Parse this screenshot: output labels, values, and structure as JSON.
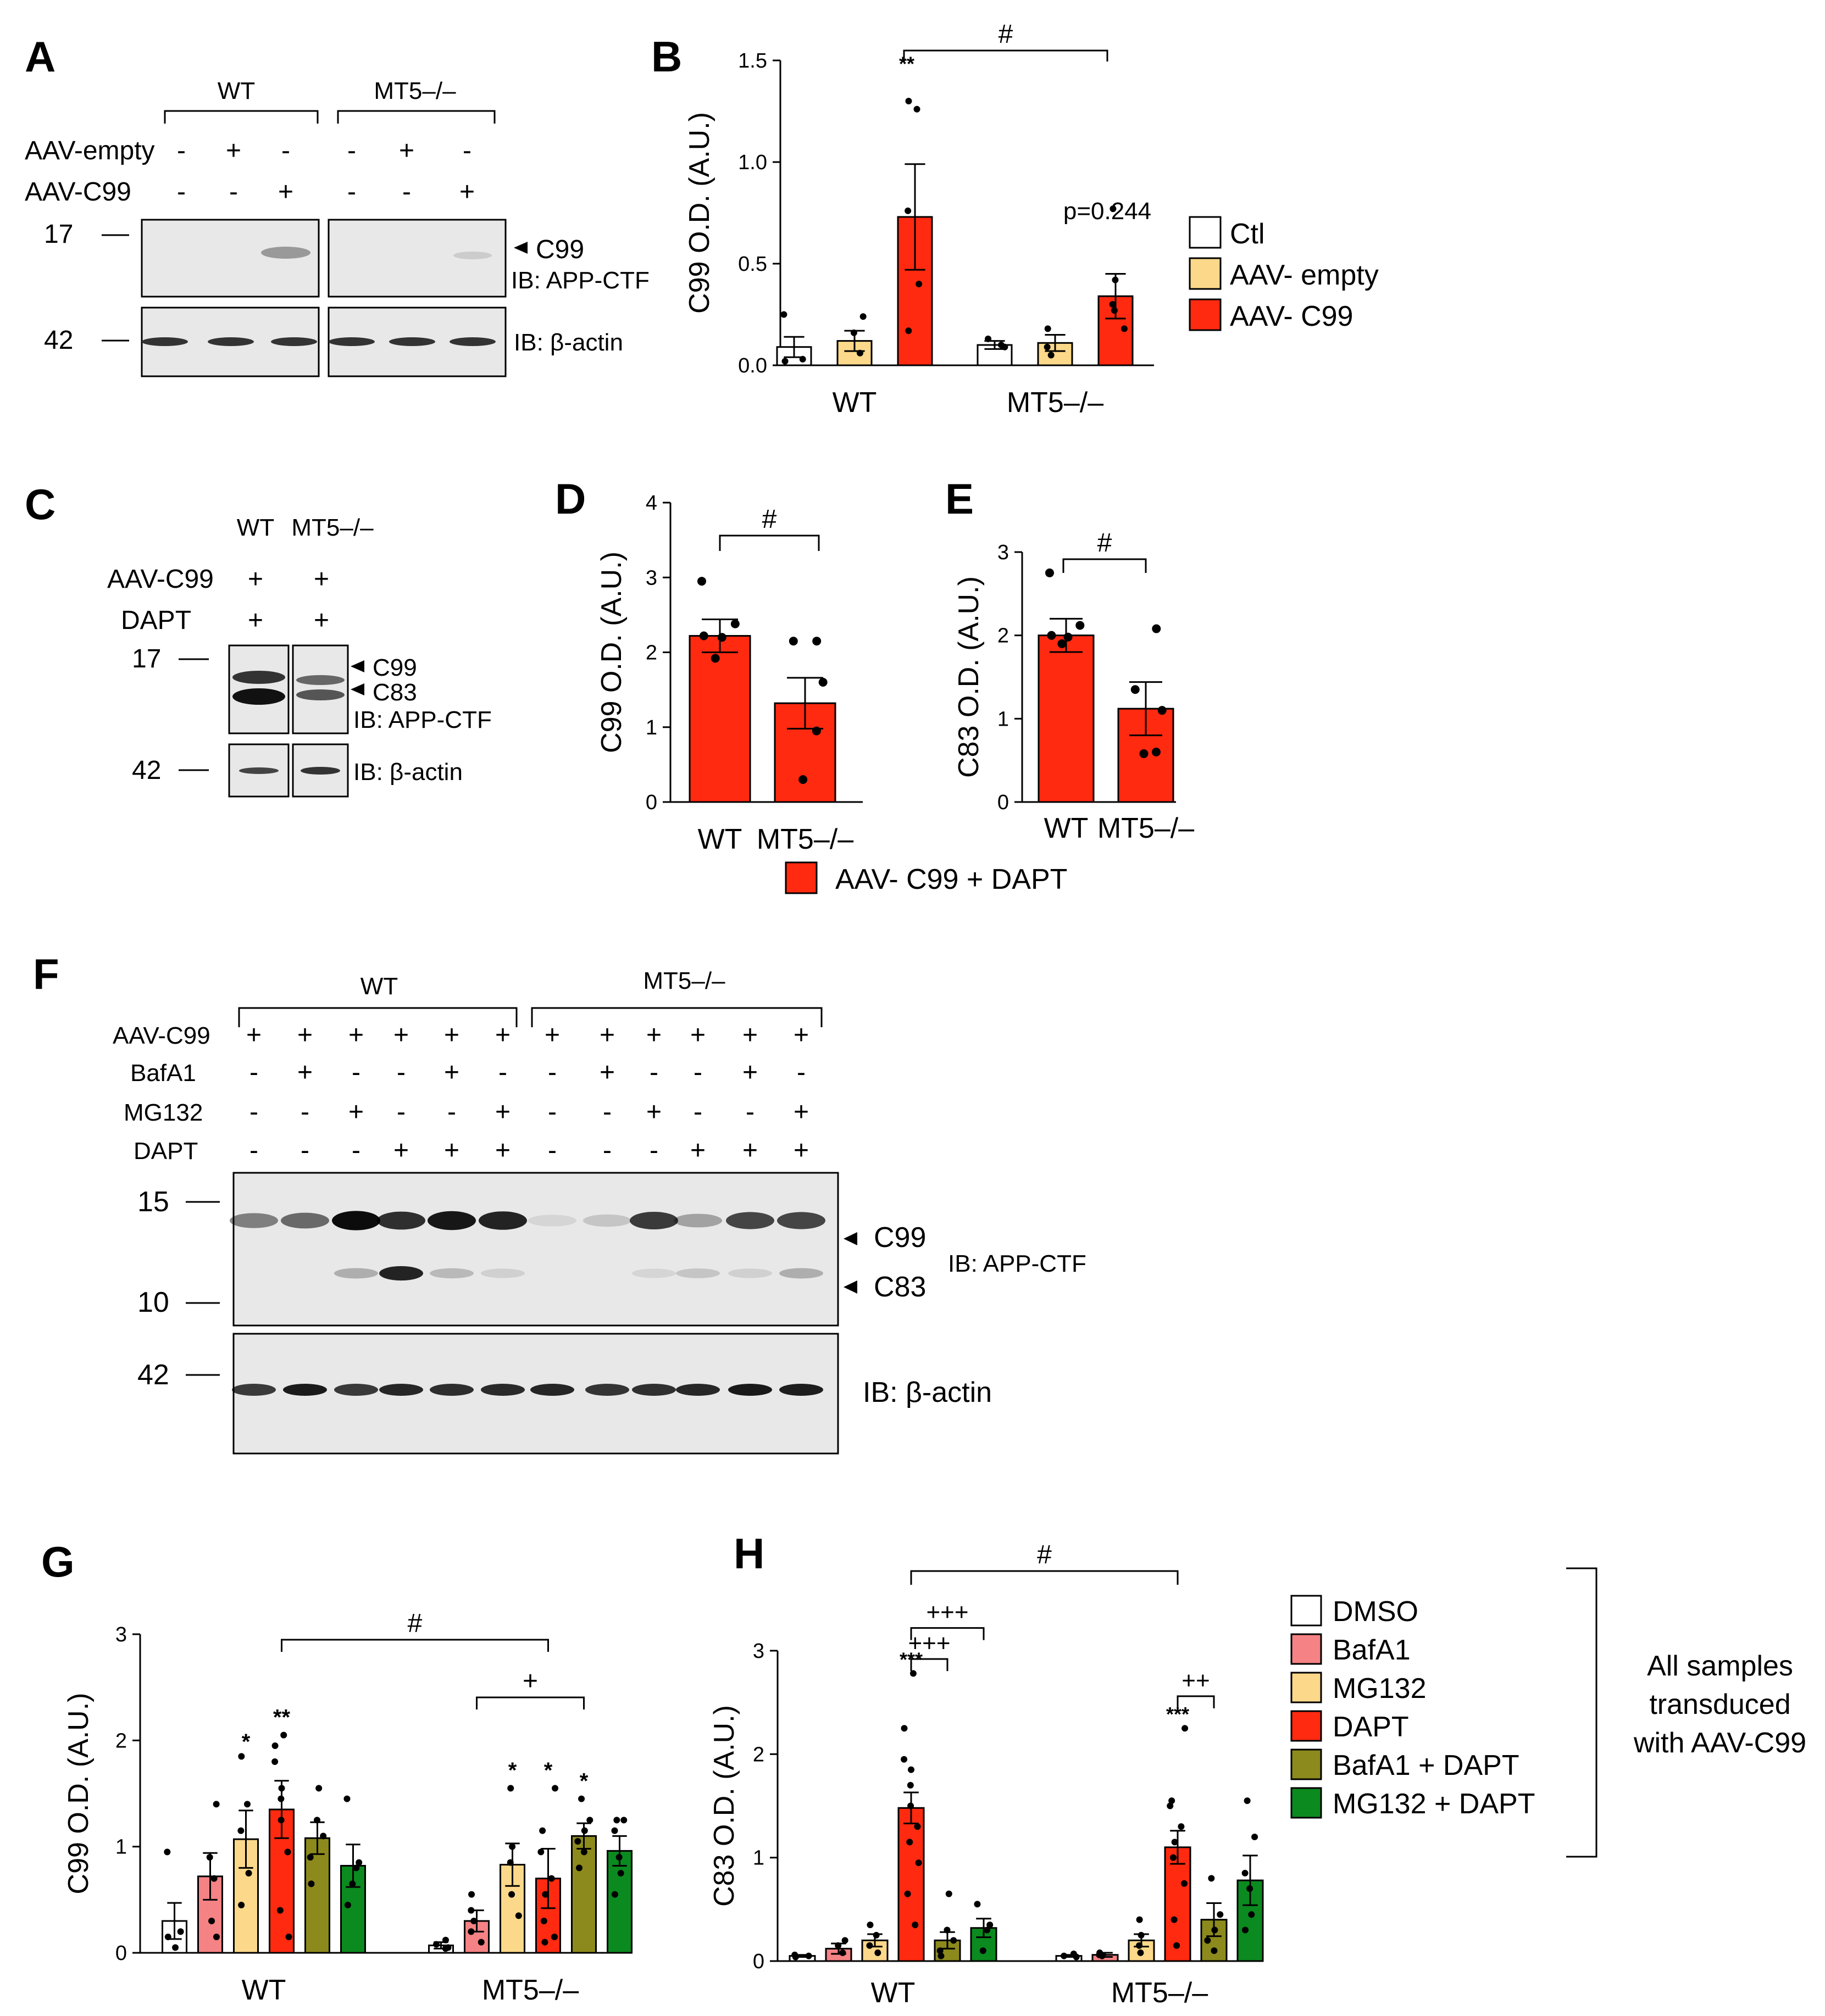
{
  "colors": {
    "ctl": "#ffffff",
    "empty": "#fcd88a",
    "c99": "#ff2a10",
    "dmso": "#ffffff",
    "bafa1": "#f58284",
    "mg132": "#fcd88a",
    "dapt": "#ff2a10",
    "bafa1_dapt": "#8c8a1c",
    "mg132_dapt": "#0b8a1f"
  },
  "panels": {
    "A": "A",
    "B": "B",
    "C": "C",
    "D": "D",
    "E": "E",
    "F": "F",
    "G": "G",
    "H": "H"
  },
  "blotA": {
    "group_wt": "WT",
    "group_ko": "MT5–/–",
    "row_labels": [
      "AAV-empty",
      "AAV-C99"
    ],
    "row_values": [
      [
        "-",
        "+",
        "-",
        "-",
        "+",
        "-"
      ],
      [
        "-",
        "-",
        "+",
        "-",
        "-",
        "+"
      ]
    ],
    "mw": [
      "17",
      "42"
    ],
    "band_c99": "C99",
    "ib_top": "IB: APP-CTF",
    "ib_bottom": "IB: β-actin"
  },
  "blotC": {
    "group_wt": "WT",
    "group_ko": "MT5–/–",
    "row_labels": [
      "AAV-C99",
      "DAPT"
    ],
    "row_values": [
      [
        "+",
        "+"
      ],
      [
        "+",
        "+"
      ]
    ],
    "mw": [
      "17",
      "42"
    ],
    "band_c99": "C99",
    "band_c83": "C83",
    "ib_top": "IB: APP-CTF",
    "ib_bottom": "IB: β-actin"
  },
  "blotF": {
    "group_wt": "WT",
    "group_ko": "MT5–/–",
    "row_labels": [
      "AAV-C99",
      "BafA1",
      "MG132",
      "DAPT"
    ],
    "row_values": [
      [
        "+",
        "+",
        "+",
        "+",
        "+",
        "+",
        "+",
        "+",
        "+",
        "+",
        "+",
        "+"
      ],
      [
        "-",
        "+",
        "-",
        "-",
        "+",
        "-",
        "-",
        "+",
        "-",
        "-",
        "+",
        "-"
      ],
      [
        "-",
        "-",
        "+",
        "-",
        "-",
        "+",
        "-",
        "-",
        "+",
        "-",
        "-",
        "+"
      ],
      [
        "-",
        "-",
        "-",
        "+",
        "+",
        "+",
        "-",
        "-",
        "-",
        "+",
        "+",
        "+"
      ]
    ],
    "mw": [
      "15",
      "10",
      "42"
    ],
    "band_c99": "C99",
    "band_c83": "C83",
    "ib_top": "IB: APP-CTF",
    "ib_bottom": "IB: β-actin"
  },
  "legendB": [
    "Ctl",
    "AAV- empty",
    "AAV- C99"
  ],
  "legendDE": "AAV- C99 + DAPT",
  "legendGH": [
    "DMSO",
    "BafA1",
    "MG132",
    "DAPT",
    "BafA1 + DAPT",
    "MG132 + DAPT"
  ],
  "noteGH": [
    "All samples",
    "transduced",
    "with AAV-C99"
  ],
  "chart_data": [
    {
      "id": "B",
      "type": "bar",
      "ylabel": "C99 O.D. (A.U.)",
      "ylim": [
        0,
        1.5
      ],
      "yticks": [
        "0.0",
        "0.5",
        "1.0",
        "1.5"
      ],
      "categories": [
        "WT",
        "MT5–/–"
      ],
      "series": [
        {
          "name": "Ctl",
          "values": [
            0.09,
            0.1
          ],
          "sem": [
            0.05,
            0.02
          ],
          "points": [
            [
              0.25,
              0.03,
              0.02
            ],
            [
              0.1,
              0.13,
              0.09
            ]
          ]
        },
        {
          "name": "AAV- empty",
          "values": [
            0.12,
            0.11
          ],
          "sem": [
            0.05,
            0.04
          ],
          "points": [
            [
              0.24,
              0.16,
              0.06
            ],
            [
              0.18,
              0.09,
              0.05
            ]
          ]
        },
        {
          "name": "AAV- C99",
          "values": [
            0.73,
            0.34
          ],
          "sem": [
            0.26,
            0.11
          ],
          "points": [
            [
              1.3,
              1.26,
              0.76,
              0.4,
              0.17
            ],
            [
              0.77,
              0.42,
              0.3,
              0.27,
              0.18
            ]
          ]
        }
      ],
      "annotations": {
        "stars_wt_c99": "**",
        "p_ko_c99": "p=0.244",
        "hash": "#"
      }
    },
    {
      "id": "D",
      "type": "bar",
      "ylabel": "C99 O.D. (A.U.)",
      "ylim": [
        0,
        4
      ],
      "yticks": [
        "0",
        "1",
        "2",
        "3",
        "4"
      ],
      "categories": [
        "WT",
        "MT5–/–"
      ],
      "series": [
        {
          "name": "AAV- C99 + DAPT",
          "values": [
            2.22,
            1.32
          ],
          "sem": [
            0.22,
            0.34
          ],
          "points": [
            [
              2.95,
              2.38,
              2.22,
              2.2,
              1.92
            ],
            [
              2.15,
              2.15,
              1.6,
              0.95,
              0.3
            ]
          ]
        }
      ],
      "annotations": {
        "hash": "#"
      }
    },
    {
      "id": "E",
      "type": "bar",
      "ylabel": "C83 O.D. (A.U.)",
      "ylim": [
        0,
        3
      ],
      "yticks": [
        "0",
        "1",
        "2",
        "3"
      ],
      "categories": [
        "WT",
        "MT5–/–"
      ],
      "series": [
        {
          "name": "AAV- C99 + DAPT",
          "values": [
            2.0,
            1.12
          ],
          "sem": [
            0.2,
            0.32
          ],
          "points": [
            [
              2.75,
              2.12,
              2.0,
              1.98,
              1.9
            ],
            [
              2.08,
              1.35,
              1.1,
              0.6,
              0.58
            ]
          ]
        }
      ],
      "annotations": {
        "hash": "#"
      }
    },
    {
      "id": "G",
      "type": "bar",
      "ylabel": "C99 O.D. (A.U.)",
      "ylim": [
        0,
        3
      ],
      "yticks": [
        "0",
        "1",
        "2",
        "3"
      ],
      "categories": [
        "WT",
        "MT5–/–"
      ],
      "series": [
        {
          "name": "DMSO",
          "values": [
            0.3,
            0.07
          ],
          "sem": [
            0.17,
            0.03
          ],
          "points": [
            [
              0.95,
              0.2,
              0.15,
              0.05
            ],
            [
              0.12,
              0.08,
              0.05,
              0.04
            ]
          ]
        },
        {
          "name": "BafA1",
          "values": [
            0.72,
            0.3
          ],
          "sem": [
            0.22,
            0.1
          ],
          "points": [
            [
              1.4,
              0.9,
              0.7,
              0.3,
              0.15
            ],
            [
              0.55,
              0.4,
              0.3,
              0.2,
              0.1
            ]
          ]
        },
        {
          "name": "MG132",
          "values": [
            1.07,
            0.83
          ],
          "sem": [
            0.27,
            0.2
          ],
          "points": [
            [
              1.85,
              1.4,
              1.15,
              0.75,
              0.45
            ],
            [
              1.55,
              1.0,
              0.85,
              0.55,
              0.35
            ]
          ]
        },
        {
          "name": "DAPT",
          "values": [
            1.35,
            0.7
          ],
          "sem": [
            0.27,
            0.28
          ],
          "points": [
            [
              2.05,
              1.95,
              1.8,
              1.55,
              1.45,
              1.25,
              0.95,
              0.4,
              0.15
            ],
            [
              1.55,
              1.15,
              0.95,
              0.7,
              0.55,
              0.3,
              0.15,
              0.1
            ]
          ]
        },
        {
          "name": "BafA1 + DAPT",
          "values": [
            1.08,
            1.1
          ],
          "sem": [
            0.15,
            0.12
          ],
          "points": [
            [
              1.55,
              1.25,
              1.1,
              0.9,
              0.65
            ],
            [
              1.45,
              1.25,
              1.15,
              1.05,
              0.95,
              0.8
            ]
          ]
        },
        {
          "name": "MG132 + DAPT",
          "values": [
            0.82,
            0.96
          ],
          "sem": [
            0.2,
            0.14
          ],
          "points": [
            [
              1.45,
              0.85,
              0.8,
              0.65,
              0.45
            ],
            [
              1.25,
              1.25,
              1.15,
              0.9,
              0.75,
              0.55
            ]
          ]
        }
      ],
      "annotations": {
        "star": "*",
        "dstar": "**",
        "hash": "#",
        "plus": "+"
      }
    },
    {
      "id": "H",
      "type": "bar",
      "ylabel": "C83 O.D. (A.U.)",
      "ylim": [
        0,
        3
      ],
      "yticks": [
        "0",
        "1",
        "2",
        "3"
      ],
      "categories": [
        "WT",
        "MT5–/–"
      ],
      "series": [
        {
          "name": "DMSO",
          "values": [
            0.05,
            0.05
          ],
          "sem": [
            0.01,
            0.01
          ],
          "points": [
            [
              0.06,
              0.05,
              0.04
            ],
            [
              0.07,
              0.05,
              0.04
            ]
          ]
        },
        {
          "name": "BafA1",
          "values": [
            0.12,
            0.06
          ],
          "sem": [
            0.05,
            0.02
          ],
          "points": [
            [
              0.2,
              0.15,
              0.08
            ],
            [
              0.08,
              0.06,
              0.05
            ]
          ]
        },
        {
          "name": "MG132",
          "values": [
            0.2,
            0.2
          ],
          "sem": [
            0.06,
            0.06
          ],
          "points": [
            [
              0.35,
              0.25,
              0.15,
              0.08
            ],
            [
              0.4,
              0.25,
              0.15,
              0.08
            ]
          ]
        },
        {
          "name": "DAPT",
          "values": [
            1.48,
            1.1
          ],
          "sem": [
            0.15,
            0.16
          ],
          "points": [
            [
              2.78,
              2.25,
              1.95,
              1.85,
              1.7,
              1.5,
              1.3,
              1.15,
              0.95,
              0.65,
              0.35
            ],
            [
              2.25,
              1.55,
              1.5,
              1.3,
              1.15,
              1.0,
              0.75,
              0.4,
              0.15
            ]
          ]
        },
        {
          "name": "BafA1 + DAPT",
          "values": [
            0.2,
            0.4
          ],
          "sem": [
            0.08,
            0.16
          ],
          "points": [
            [
              0.65,
              0.3,
              0.2,
              0.1,
              0.05
            ],
            [
              0.8,
              0.45,
              0.3,
              0.2,
              0.1
            ]
          ]
        },
        {
          "name": "MG132 + DAPT",
          "values": [
            0.32,
            0.78
          ],
          "sem": [
            0.09,
            0.24
          ],
          "points": [
            [
              0.55,
              0.35,
              0.3,
              0.1
            ],
            [
              1.55,
              1.2,
              0.85,
              0.7,
              0.45,
              0.3
            ]
          ]
        }
      ],
      "annotations": {
        "stars": "***",
        "plus3": "+++",
        "plus2": "++",
        "hash": "#"
      }
    }
  ],
  "axis_categories": {
    "wt": "WT",
    "ko": "MT5–/–"
  }
}
